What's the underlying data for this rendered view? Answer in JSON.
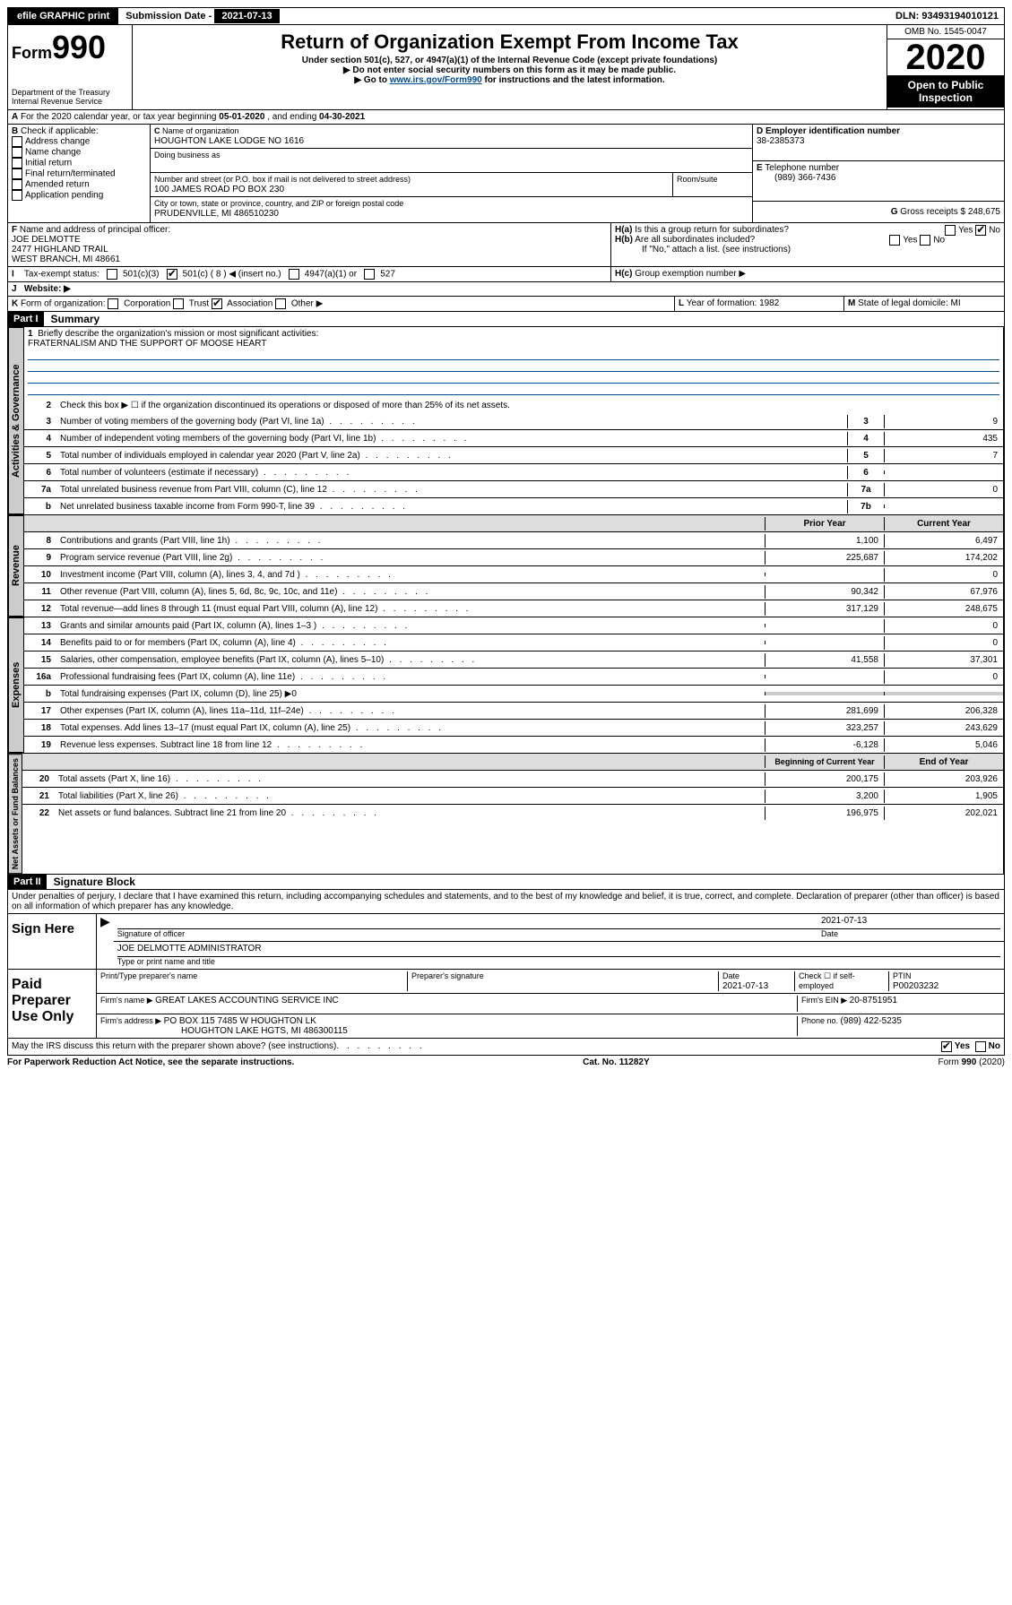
{
  "topbar": {
    "efile": "efile GRAPHIC print",
    "subdate_lbl": "Submission Date - ",
    "subdate": "2021-07-13",
    "dln_lbl": "DLN: ",
    "dln": "93493194010121"
  },
  "header": {
    "form_prefix": "Form",
    "form_num": "990",
    "dept": "Department of the Treasury\nInternal Revenue Service",
    "title": "Return of Organization Exempt From Income Tax",
    "sub1": "Under section 501(c), 527, or 4947(a)(1) of the Internal Revenue Code (except private foundations)",
    "sub2": "▶ Do not enter social security numbers on this form as it may be made public.",
    "sub3_pre": "▶ Go to ",
    "sub3_link": "www.irs.gov/Form990",
    "sub3_post": " for instructions and the latest information.",
    "omb": "OMB No. 1545-0047",
    "year": "2020",
    "open": "Open to Public Inspection"
  },
  "A": {
    "text": "For the 2020 calendar year, or tax year beginning ",
    "begin": "05-01-2020",
    "mid": " , and ending ",
    "end": "04-30-2021"
  },
  "B": {
    "label": "Check if applicable:",
    "opts": [
      "Address change",
      "Name change",
      "Initial return",
      "Final return/terminated",
      "Amended return",
      "Application pending"
    ]
  },
  "C": {
    "name_lbl": "Name of organization",
    "name": "HOUGHTON LAKE LODGE NO 1616",
    "dba_lbl": "Doing business as",
    "addr_lbl": "Number and street (or P.O. box if mail is not delivered to street address)",
    "room_lbl": "Room/suite",
    "addr": "100 JAMES ROAD PO BOX 230",
    "city_lbl": "City or town, state or province, country, and ZIP or foreign postal code",
    "city": "PRUDENVILLE, MI  486510230"
  },
  "D": {
    "lbl": "Employer identification number",
    "val": "38-2385373"
  },
  "E": {
    "lbl": "Telephone number",
    "val": "(989) 366-7436"
  },
  "G": {
    "lbl": "Gross receipts $ ",
    "val": "248,675"
  },
  "F": {
    "lbl": "Name and address of principal officer:",
    "name": "JOE DELMOTTE",
    "addr1": "2477 HIGHLAND TRAIL",
    "addr2": "WEST BRANCH, MI  48661"
  },
  "H": {
    "a": "Is this a group return for subordinates?",
    "b": "Are all subordinates included?",
    "inst": "If \"No,\" attach a list. (see instructions)",
    "c": "Group exemption number ▶"
  },
  "I": {
    "lbl": "Tax-exempt status:",
    "insert": "501(c) ( 8 ) ◀ (insert no.)"
  },
  "J": {
    "lbl": "Website: ▶"
  },
  "K": {
    "lbl": "Form of organization:",
    "opts": [
      "Corporation",
      "Trust",
      "Association",
      "Other ▶"
    ]
  },
  "L": {
    "lbl": "Year of formation: ",
    "val": "1982"
  },
  "M": {
    "lbl": "State of legal domicile: ",
    "val": "MI"
  },
  "part1": {
    "hdr": "Part I",
    "title": "Summary",
    "l1_lbl": "Briefly describe the organization's mission or most significant activities:",
    "l1_val": "FRATERNALISM AND THE SUPPORT OF MOOSE HEART",
    "l2": "Check this box ▶ ☐  if the organization discontinued its operations or disposed of more than 25% of its net assets.",
    "lines_gov": [
      {
        "n": "3",
        "d": "Number of voting members of the governing body (Part VI, line 1a)",
        "c": "3",
        "v": "9"
      },
      {
        "n": "4",
        "d": "Number of independent voting members of the governing body (Part VI, line 1b)",
        "c": "4",
        "v": "435"
      },
      {
        "n": "5",
        "d": "Total number of individuals employed in calendar year 2020 (Part V, line 2a)",
        "c": "5",
        "v": "7"
      },
      {
        "n": "6",
        "d": "Total number of volunteers (estimate if necessary)",
        "c": "6",
        "v": ""
      },
      {
        "n": "7a",
        "d": "Total unrelated business revenue from Part VIII, column (C), line 12",
        "c": "7a",
        "v": "0"
      },
      {
        "n": "b",
        "d": "Net unrelated business taxable income from Form 990-T, line 39",
        "c": "7b",
        "v": ""
      }
    ],
    "colhead_prior": "Prior Year",
    "colhead_curr": "Current Year",
    "rev": [
      {
        "n": "8",
        "d": "Contributions and grants (Part VIII, line 1h)",
        "p": "1,100",
        "c": "6,497"
      },
      {
        "n": "9",
        "d": "Program service revenue (Part VIII, line 2g)",
        "p": "225,687",
        "c": "174,202"
      },
      {
        "n": "10",
        "d": "Investment income (Part VIII, column (A), lines 3, 4, and 7d )",
        "p": "",
        "c": "0"
      },
      {
        "n": "11",
        "d": "Other revenue (Part VIII, column (A), lines 5, 6d, 8c, 9c, 10c, and 11e)",
        "p": "90,342",
        "c": "67,976"
      },
      {
        "n": "12",
        "d": "Total revenue—add lines 8 through 11 (must equal Part VIII, column (A), line 12)",
        "p": "317,129",
        "c": "248,675"
      }
    ],
    "exp": [
      {
        "n": "13",
        "d": "Grants and similar amounts paid (Part IX, column (A), lines 1–3 )",
        "p": "",
        "c": "0"
      },
      {
        "n": "14",
        "d": "Benefits paid to or for members (Part IX, column (A), line 4)",
        "p": "",
        "c": "0"
      },
      {
        "n": "15",
        "d": "Salaries, other compensation, employee benefits (Part IX, column (A), lines 5–10)",
        "p": "41,558",
        "c": "37,301"
      },
      {
        "n": "16a",
        "d": "Professional fundraising fees (Part IX, column (A), line 11e)",
        "p": "",
        "c": "0"
      },
      {
        "n": "b",
        "d": "Total fundraising expenses (Part IX, column (D), line 25) ▶0",
        "p": null,
        "c": null
      },
      {
        "n": "17",
        "d": "Other expenses (Part IX, column (A), lines 11a–11d, 11f–24e)",
        "p": "281,699",
        "c": "206,328"
      },
      {
        "n": "18",
        "d": "Total expenses. Add lines 13–17 (must equal Part IX, column (A), line 25)",
        "p": "323,257",
        "c": "243,629"
      },
      {
        "n": "19",
        "d": "Revenue less expenses. Subtract line 18 from line 12",
        "p": "-6,128",
        "c": "5,046"
      }
    ],
    "colhead_begin": "Beginning of Current Year",
    "colhead_end": "End of Year",
    "net": [
      {
        "n": "20",
        "d": "Total assets (Part X, line 16)",
        "p": "200,175",
        "c": "203,926"
      },
      {
        "n": "21",
        "d": "Total liabilities (Part X, line 26)",
        "p": "3,200",
        "c": "1,905"
      },
      {
        "n": "22",
        "d": "Net assets or fund balances. Subtract line 21 from line 20",
        "p": "196,975",
        "c": "202,021"
      }
    ],
    "tabs": {
      "gov": "Activities & Governance",
      "rev": "Revenue",
      "exp": "Expenses",
      "net": "Net Assets or Fund Balances"
    }
  },
  "part2": {
    "hdr": "Part II",
    "title": "Signature Block",
    "decl": "Under penalties of perjury, I declare that I have examined this return, including accompanying schedules and statements, and to the best of my knowledge and belief, it is true, correct, and complete. Declaration of preparer (other than officer) is based on all information of which preparer has any knowledge.",
    "sign_here": "Sign Here",
    "sig_officer": "Signature of officer",
    "date_lbl": "Date",
    "date": "2021-07-13",
    "officer_name": "JOE DELMOTTE  ADMINISTRATOR",
    "type_name": "Type or print name and title",
    "paid": "Paid Preparer Use Only",
    "prep_name_lbl": "Print/Type preparer's name",
    "prep_sig_lbl": "Preparer's signature",
    "prep_date_lbl": "Date",
    "prep_date": "2021-07-13",
    "check_self": "Check ☐ if self-employed",
    "ptin_lbl": "PTIN",
    "ptin": "P00203232",
    "firm_name_lbl": "Firm's name    ▶ ",
    "firm_name": "GREAT LAKES ACCOUNTING SERVICE INC",
    "firm_ein_lbl": "Firm's EIN ▶ ",
    "firm_ein": "20-8751951",
    "firm_addr_lbl": "Firm's address ▶ ",
    "firm_addr1": "PO BOX 115 7485 W HOUGHTON LK",
    "firm_addr2": "HOUGHTON LAKE HGTS, MI  486300115",
    "phone_lbl": "Phone no. ",
    "phone": "(989) 422-5235",
    "discuss": "May the IRS discuss this return with the preparer shown above? (see instructions)"
  },
  "footer": {
    "left": "For Paperwork Reduction Act Notice, see the separate instructions.",
    "mid": "Cat. No. 11282Y",
    "right": "Form 990 (2020)"
  }
}
